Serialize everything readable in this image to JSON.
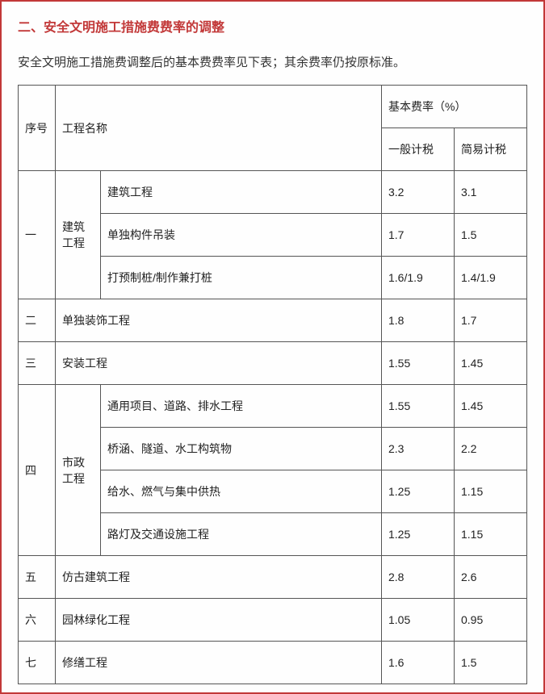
{
  "section_title": "二、安全文明施工措施费费率的调整",
  "intro": "安全文明施工措施费调整后的基本费费率见下表；其余费率仍按原标准。",
  "headers": {
    "idx": "序号",
    "proj": "工程名称",
    "rate_group": "基本费率（%）",
    "gen": "一般计税",
    "simple": "简易计税"
  },
  "rows": {
    "r1_idx": "一",
    "r1_cat": "建筑工程",
    "r1a_name": "建筑工程",
    "r1a_g": "3.2",
    "r1a_s": "3.1",
    "r1b_name": "单独构件吊装",
    "r1b_g": "1.7",
    "r1b_s": "1.5",
    "r1c_name": "打预制桩/制作兼打桩",
    "r1c_g": "1.6/1.9",
    "r1c_s": "1.4/1.9",
    "r2_idx": "二",
    "r2_name": "单独装饰工程",
    "r2_g": "1.8",
    "r2_s": "1.7",
    "r3_idx": "三",
    "r3_name": "安装工程",
    "r3_g": "1.55",
    "r3_s": "1.45",
    "r4_idx": "四",
    "r4_cat": "市政工程",
    "r4a_name": "通用项目、道路、排水工程",
    "r4a_g": "1.55",
    "r4a_s": "1.45",
    "r4b_name": "桥涵、隧道、水工构筑物",
    "r4b_g": "2.3",
    "r4b_s": "2.2",
    "r4c_name": "给水、燃气与集中供热",
    "r4c_g": "1.25",
    "r4c_s": "1.15",
    "r4d_name": "路灯及交通设施工程",
    "r4d_g": "1.25",
    "r4d_s": "1.15",
    "r5_idx": "五",
    "r5_name": "仿古建筑工程",
    "r5_g": "2.8",
    "r5_s": "2.6",
    "r6_idx": "六",
    "r6_name": "园林绿化工程",
    "r6_g": "1.05",
    "r6_s": "0.95",
    "r7_idx": "七",
    "r7_name": "修缮工程",
    "r7_g": "1.6",
    "r7_s": "1.5"
  }
}
